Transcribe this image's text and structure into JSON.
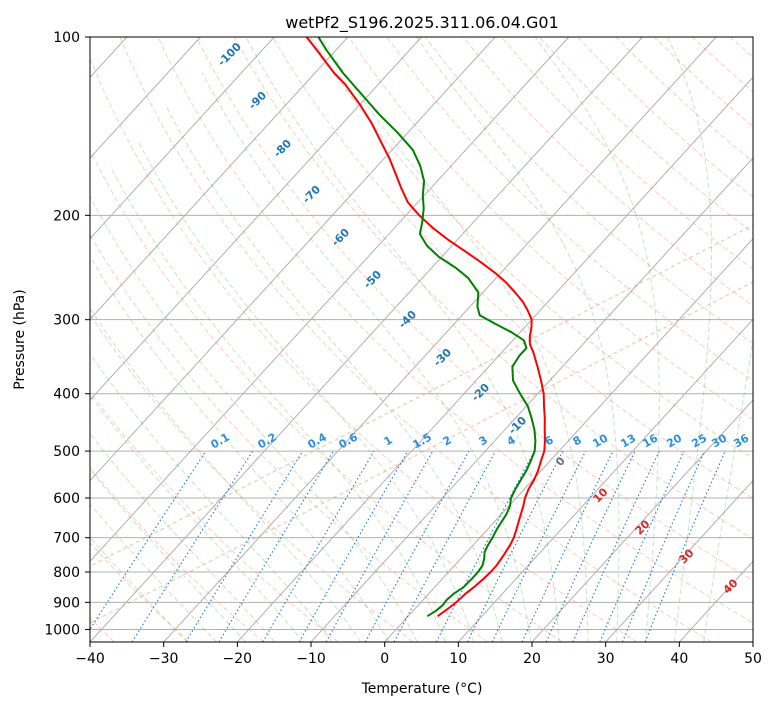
{
  "chart_data": {
    "type": "line",
    "subtype": "skew-T log-P diagram",
    "title": "wetPf2_S196.2025.311.06.04.G01",
    "xlabel": "Temperature (°C)",
    "ylabel": "Pressure (hPa)",
    "xlim": [
      -40,
      50
    ],
    "ylim": [
      1050,
      100
    ],
    "x_ticks": [
      -40,
      -30,
      -20,
      -10,
      0,
      10,
      20,
      30,
      40,
      50
    ],
    "y_ticks": [
      100,
      200,
      300,
      400,
      500,
      600,
      700,
      800,
      900,
      1000
    ],
    "grid": true,
    "series": [
      {
        "name": "temperature",
        "color": "#ff0000",
        "points": [
          [
            950,
            4.0
          ],
          [
            920,
            4.5
          ],
          [
            900,
            4.8
          ],
          [
            870,
            5.0
          ],
          [
            850,
            5.3
          ],
          [
            820,
            5.6
          ],
          [
            800,
            5.7
          ],
          [
            780,
            5.7
          ],
          [
            750,
            5.4
          ],
          [
            720,
            5.0
          ],
          [
            700,
            4.6
          ],
          [
            680,
            4.0
          ],
          [
            650,
            3.0
          ],
          [
            620,
            2.0
          ],
          [
            600,
            1.2
          ],
          [
            580,
            0.6
          ],
          [
            560,
            0.2
          ],
          [
            540,
            -0.4
          ],
          [
            520,
            -1.2
          ],
          [
            500,
            -2.0
          ],
          [
            480,
            -3.2
          ],
          [
            460,
            -4.6
          ],
          [
            440,
            -6.0
          ],
          [
            420,
            -7.6
          ],
          [
            400,
            -9.2
          ],
          [
            380,
            -11.2
          ],
          [
            360,
            -13.4
          ],
          [
            340,
            -15.8
          ],
          [
            330,
            -17.2
          ],
          [
            320,
            -18.2
          ],
          [
            310,
            -19.0
          ],
          [
            300,
            -20.0
          ],
          [
            290,
            -21.6
          ],
          [
            280,
            -23.4
          ],
          [
            270,
            -25.6
          ],
          [
            260,
            -28.0
          ],
          [
            250,
            -30.8
          ],
          [
            240,
            -34.0
          ],
          [
            230,
            -37.5
          ],
          [
            220,
            -41.2
          ],
          [
            210,
            -44.8
          ],
          [
            200,
            -48.2
          ],
          [
            190,
            -51.4
          ],
          [
            180,
            -54.0
          ],
          [
            170,
            -56.6
          ],
          [
            160,
            -59.4
          ],
          [
            150,
            -62.6
          ],
          [
            140,
            -66.0
          ],
          [
            130,
            -70.0
          ],
          [
            120,
            -74.6
          ],
          [
            115,
            -77.4
          ],
          [
            110,
            -80.0
          ],
          [
            105,
            -82.7
          ],
          [
            100,
            -85.6
          ]
        ]
      },
      {
        "name": "dewpoint",
        "color": "#008000",
        "points": [
          [
            950,
            2.6
          ],
          [
            930,
            3.1
          ],
          [
            910,
            3.3
          ],
          [
            890,
            3.2
          ],
          [
            870,
            3.4
          ],
          [
            850,
            3.9
          ],
          [
            820,
            4.0
          ],
          [
            800,
            4.0
          ],
          [
            780,
            3.8
          ],
          [
            760,
            3.2
          ],
          [
            740,
            2.4
          ],
          [
            720,
            2.0
          ],
          [
            700,
            1.7
          ],
          [
            680,
            1.3
          ],
          [
            660,
            1.0
          ],
          [
            640,
            0.7
          ],
          [
            620,
            0.2
          ],
          [
            600,
            -0.7
          ],
          [
            580,
            -1.2
          ],
          [
            560,
            -1.6
          ],
          [
            540,
            -2.0
          ],
          [
            520,
            -2.6
          ],
          [
            500,
            -3.3
          ],
          [
            480,
            -4.5
          ],
          [
            460,
            -6.0
          ],
          [
            440,
            -7.8
          ],
          [
            420,
            -9.8
          ],
          [
            400,
            -12.4
          ],
          [
            380,
            -15.0
          ],
          [
            360,
            -16.8
          ],
          [
            345,
            -17.2
          ],
          [
            335,
            -17.2
          ],
          [
            325,
            -18.5
          ],
          [
            315,
            -21.2
          ],
          [
            305,
            -24.4
          ],
          [
            295,
            -27.6
          ],
          [
            285,
            -29.0
          ],
          [
            270,
            -30.6
          ],
          [
            255,
            -33.8
          ],
          [
            245,
            -36.8
          ],
          [
            235,
            -40.4
          ],
          [
            225,
            -43.4
          ],
          [
            215,
            -45.8
          ],
          [
            205,
            -47.0
          ],
          [
            195,
            -48.4
          ],
          [
            185,
            -50.2
          ],
          [
            175,
            -51.8
          ],
          [
            165,
            -54.2
          ],
          [
            155,
            -57.2
          ],
          [
            145,
            -61.4
          ],
          [
            135,
            -66.2
          ],
          [
            125,
            -71.0
          ],
          [
            115,
            -76.2
          ],
          [
            105,
            -81.4
          ],
          [
            100,
            -84.0
          ]
        ]
      }
    ],
    "dry_adiabat_labels": [
      "-100",
      "-90",
      "-80",
      "-70",
      "-60",
      "-50",
      "-40",
      "-30",
      "-20",
      "-10"
    ],
    "dry_adiabat_values": [
      -100,
      -90,
      -80,
      -70,
      -60,
      -50,
      -40,
      -30,
      -20,
      -10
    ],
    "mixing_ratio_labels": [
      "0.1",
      "0.2",
      "0.4",
      "0.6",
      "1",
      "1.5",
      "2",
      "3",
      "4",
      "6",
      "8",
      "10",
      "13",
      "16",
      "20",
      "25",
      "30",
      "36"
    ],
    "mixing_ratio_values": [
      0.1,
      0.2,
      0.4,
      0.6,
      1,
      1.5,
      2,
      3,
      4,
      6,
      8,
      10,
      13,
      16,
      20,
      25,
      30,
      36
    ],
    "moist_adiabat_labels": [
      "0",
      "10",
      "20",
      "30",
      "40"
    ],
    "moist_adiabat_values": [
      0,
      10,
      20,
      30,
      40
    ]
  }
}
